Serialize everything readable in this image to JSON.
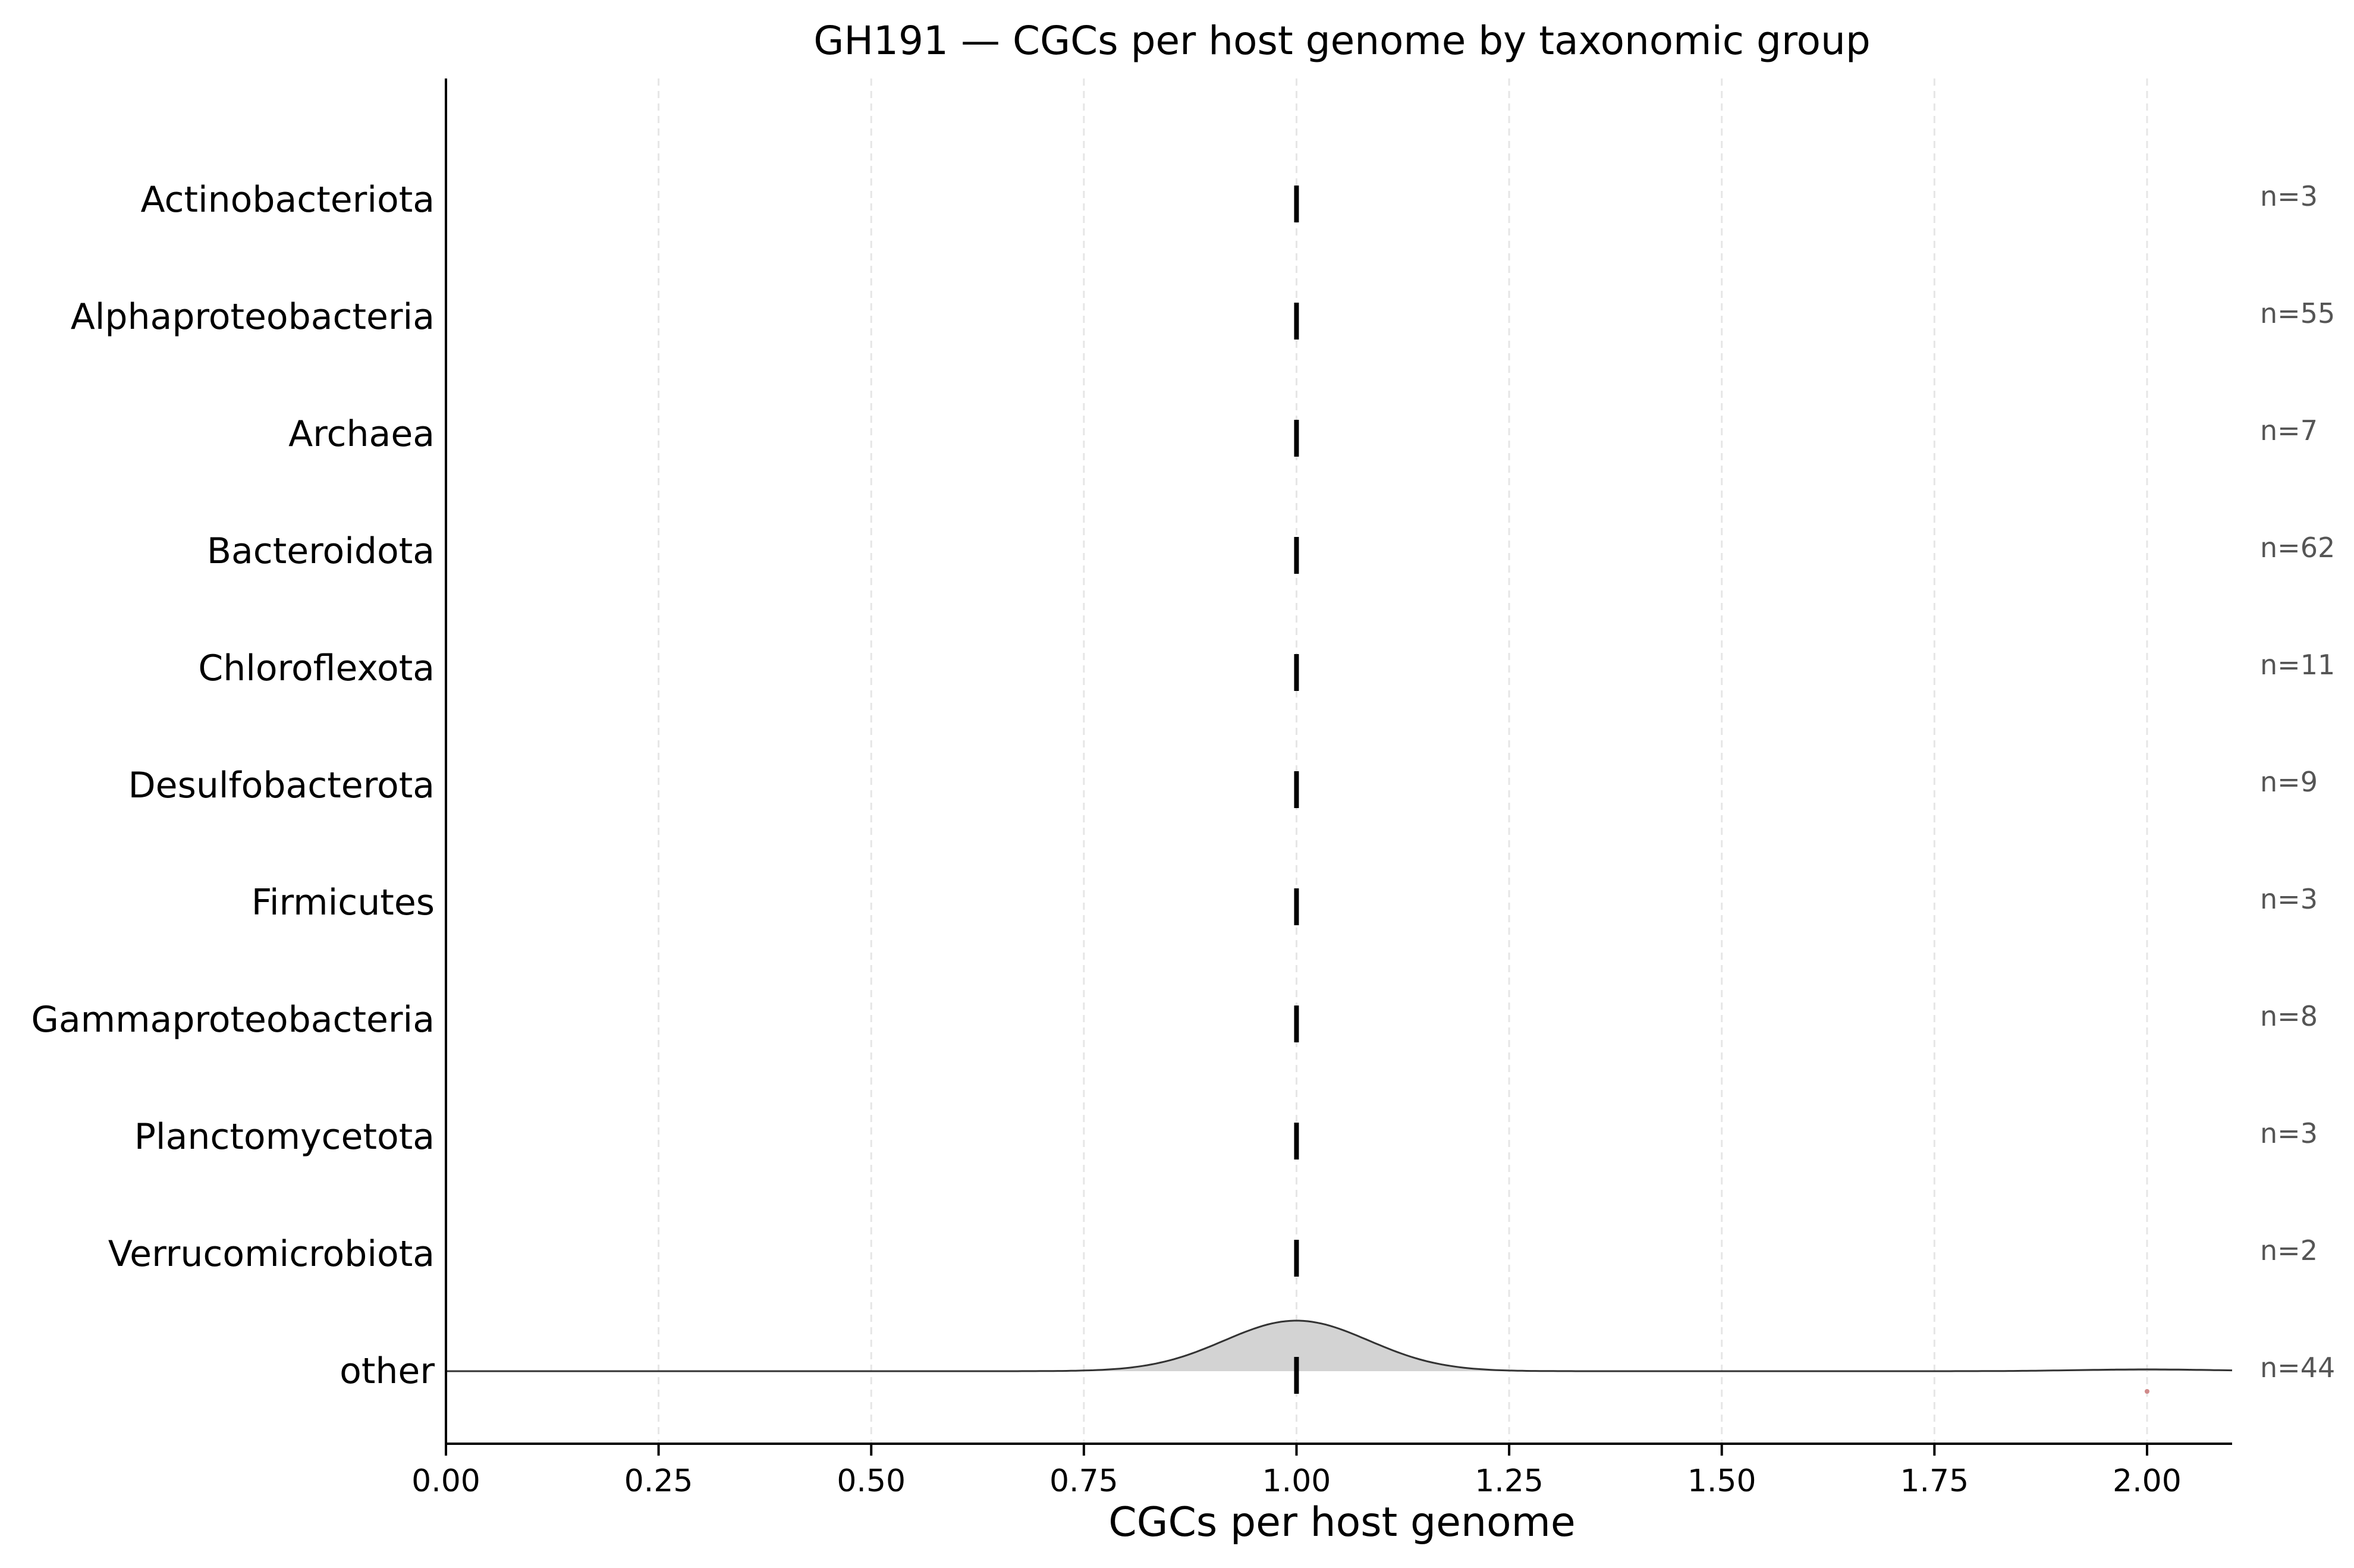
{
  "chart_data": {
    "type": "ridgeline",
    "title": "GH191 — CGCs per host genome by taxonomic group",
    "xlabel": "CGCs per host genome",
    "ylabel": "",
    "xlim": [
      0.0,
      2.1
    ],
    "xticks": [
      "0.00",
      "0.25",
      "0.50",
      "0.75",
      "1.00",
      "1.25",
      "1.50",
      "1.75",
      "2.00"
    ],
    "grid": "vertical dashed",
    "categories": [
      "Actinobacteriota",
      "Alphaproteobacteria",
      "Archaea",
      "Bacteroidota",
      "Chloroflexota",
      "Desulfobacterota",
      "Firmicutes",
      "Gammaproteobacteria",
      "Planctomycetota",
      "Verrucomicrobiota",
      "other"
    ],
    "n_labels": [
      "n=3",
      "n=55",
      "n=7",
      "n=62",
      "n=11",
      "n=9",
      "n=3",
      "n=8",
      "n=3",
      "n=2",
      "n=44"
    ],
    "medians": [
      1,
      1,
      1,
      1,
      1,
      1,
      1,
      1,
      1,
      1,
      1
    ],
    "density": {
      "category": "other",
      "main_peak_x": 1.0,
      "secondary_bump_x": 2.0,
      "outlier_x": 2.0,
      "fill": "#d3d3d3",
      "stroke": "#333333"
    }
  }
}
